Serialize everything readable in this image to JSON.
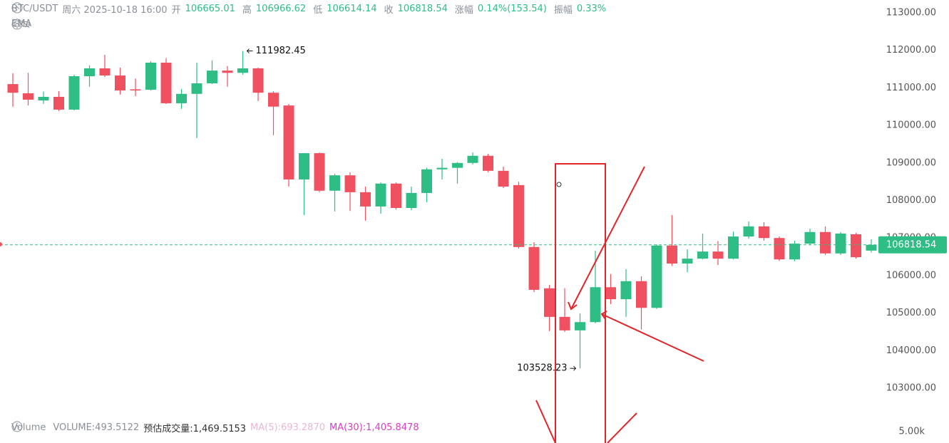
{
  "chart_data": {
    "type": "candlestick",
    "title": "BTC/USDT",
    "date_label": "周六 2025-10-18 16:00",
    "header_labels": [
      "开",
      "高",
      "低",
      "收"
    ],
    "change": {
      "label": "涨幅",
      "value": "0.14%(153.54)"
    },
    "amplitude": {
      "label": "振幅",
      "value": "0.33%"
    },
    "indicator": "EMA",
    "up_color": "#2ebd85",
    "down_color": "#ef5160",
    "open": [
      111100,
      110855,
      110665,
      110760,
      110420,
      111310,
      111520,
      111330,
      110960,
      110950,
      111670,
      110590,
      110840,
      111120,
      111460,
      111400,
      111520,
      110870,
      110530,
      108560,
      109260,
      108260,
      108670,
      108220,
      107840,
      108450,
      107800,
      108200,
      108830,
      108870,
      109000,
      109190,
      108790,
      108410,
      106760,
      105660,
      104900,
      104540,
      104760,
      105690,
      105370,
      105850,
      105140,
      106800,
      106320,
      106450,
      106640,
      106450,
      107040,
      107310,
      107000,
      106430,
      106850,
      107160,
      106590,
      107100,
      106665.01
    ],
    "high": [
      111390,
      111400,
      110900,
      110910,
      111350,
      111600,
      111880,
      111540,
      111250,
      111710,
      111790,
      110970,
      111670,
      111730,
      111580,
      111982.45,
      111540,
      110910,
      110570,
      109260,
      109280,
      108710,
      108750,
      108370,
      108480,
      108480,
      108370,
      108870,
      109110,
      109020,
      109280,
      109240,
      108900,
      108500,
      106890,
      105750,
      105660,
      104990,
      106660,
      106040,
      106170,
      105980,
      106830,
      107610,
      106700,
      107120,
      106920,
      107170,
      107440,
      107420,
      107040,
      106930,
      107250,
      107310,
      107160,
      107140,
      106966.62
    ],
    "low": [
      110500,
      110530,
      110570,
      110380,
      110400,
      111030,
      111290,
      110820,
      110780,
      110930,
      110570,
      110440,
      109660,
      111100,
      111030,
      111350,
      110650,
      109740,
      108370,
      107610,
      108220,
      107710,
      107720,
      107460,
      107650,
      107760,
      107740,
      107950,
      108560,
      108450,
      108960,
      108750,
      108330,
      106720,
      105560,
      104520,
      104500,
      103528.23,
      104730,
      105240,
      104900,
      104560,
      105110,
      106260,
      106090,
      106430,
      106280,
      106430,
      106980,
      106930,
      106390,
      106380,
      106810,
      106550,
      106550,
      106450,
      106614.14
    ],
    "close": [
      110870,
      110685,
      110760,
      110420,
      111310,
      111520,
      111330,
      110930,
      110930,
      111670,
      110590,
      110840,
      111120,
      111460,
      111400,
      111520,
      110870,
      110500,
      108560,
      109260,
      108260,
      108670,
      108220,
      107840,
      108450,
      107800,
      108200,
      108830,
      108870,
      109000,
      109190,
      108790,
      108370,
      106760,
      105620,
      104900,
      104540,
      104760,
      105690,
      105370,
      105850,
      105140,
      106800,
      106320,
      106450,
      106640,
      106450,
      107040,
      107310,
      107000,
      106430,
      106850,
      107160,
      106590,
      107120,
      106490,
      106818.54
    ],
    "ylim": [
      101540,
      113340
    ],
    "yticks": [
      {
        "value": 103000,
        "label": "103000.00"
      },
      {
        "value": 104000,
        "label": "104000.00"
      },
      {
        "value": 105000,
        "label": "105000.00"
      },
      {
        "value": 106000,
        "label": "106000.00"
      },
      {
        "value": 107000,
        "label": "107000.00"
      },
      {
        "value": 108000,
        "label": "108000.00"
      },
      {
        "value": 109000,
        "label": "109000.00"
      },
      {
        "value": 110000,
        "label": "110000.00"
      },
      {
        "value": 111000,
        "label": "111000.00"
      },
      {
        "value": 112000,
        "label": "112000.00"
      },
      {
        "value": 113000,
        "label": "113000.00"
      }
    ],
    "last_price_line": true,
    "volume_panel": {
      "title": "Volume",
      "items": [
        "VOLUME:493.5122",
        "预估成交量:1,469.5153",
        "MA(5):693.2870",
        "MA(30):1,405.8478"
      ],
      "axis_label": "5.00k"
    }
  }
}
